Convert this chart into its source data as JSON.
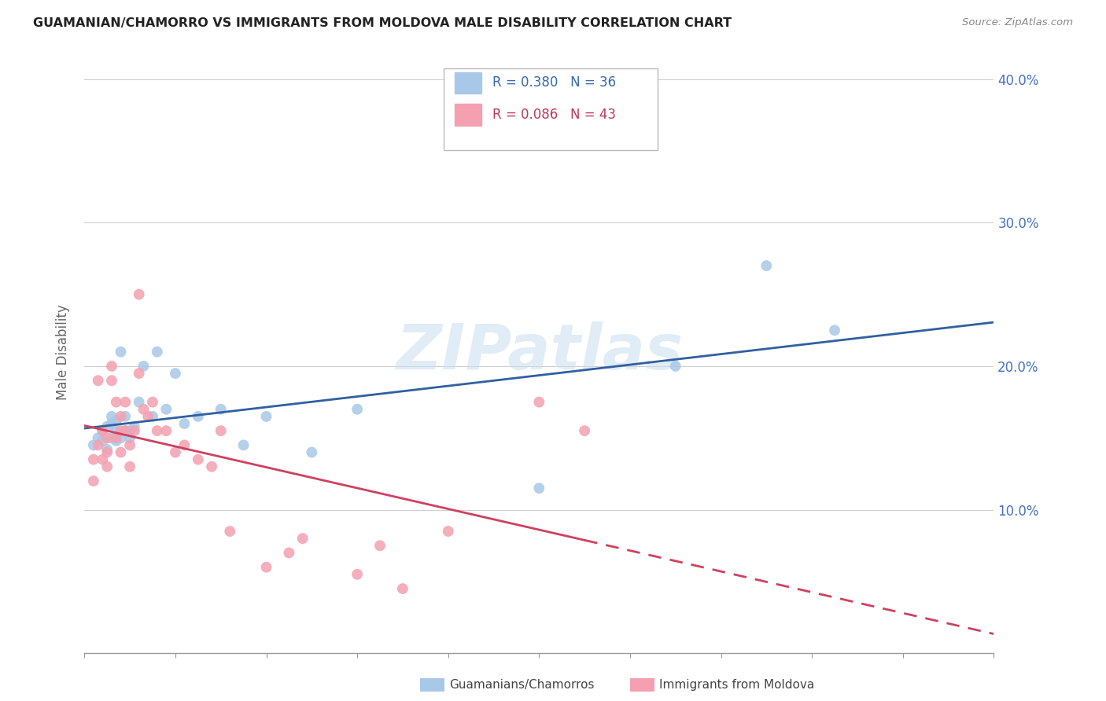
{
  "title": "GUAMANIAN/CHAMORRO VS IMMIGRANTS FROM MOLDOVA MALE DISABILITY CORRELATION CHART",
  "source": "Source: ZipAtlas.com",
  "ylabel": "Male Disability",
  "xlim": [
    0.0,
    0.2
  ],
  "ylim": [
    0.0,
    0.42
  ],
  "legend_blue_R": "R = 0.380",
  "legend_blue_N": "N = 36",
  "legend_pink_R": "R = 0.086",
  "legend_pink_N": "N = 43",
  "legend_label_blue": "Guamanians/Chamorros",
  "legend_label_pink": "Immigrants from Moldova",
  "blue_fill": "#a8c8e8",
  "pink_fill": "#f4a0b0",
  "blue_line_color": "#3060a0",
  "pink_line_color": "#d04060",
  "background_color": "#ffffff",
  "watermark": "ZIPatlas",
  "blue_x": [
    0.002,
    0.003,
    0.004,
    0.004,
    0.005,
    0.005,
    0.006,
    0.006,
    0.006,
    0.007,
    0.007,
    0.007,
    0.008,
    0.008,
    0.009,
    0.009,
    0.01,
    0.01,
    0.011,
    0.012,
    0.013,
    0.015,
    0.016,
    0.018,
    0.02,
    0.022,
    0.025,
    0.03,
    0.035,
    0.04,
    0.05,
    0.06,
    0.1,
    0.13,
    0.15,
    0.165
  ],
  "blue_y": [
    0.145,
    0.15,
    0.148,
    0.155,
    0.142,
    0.158,
    0.15,
    0.16,
    0.165,
    0.148,
    0.155,
    0.162,
    0.15,
    0.21,
    0.155,
    0.165,
    0.15,
    0.155,
    0.158,
    0.175,
    0.2,
    0.165,
    0.21,
    0.17,
    0.195,
    0.16,
    0.165,
    0.17,
    0.145,
    0.165,
    0.14,
    0.17,
    0.115,
    0.2,
    0.27,
    0.225
  ],
  "pink_x": [
    0.002,
    0.002,
    0.003,
    0.003,
    0.004,
    0.004,
    0.005,
    0.005,
    0.005,
    0.006,
    0.006,
    0.007,
    0.007,
    0.008,
    0.008,
    0.008,
    0.009,
    0.009,
    0.01,
    0.01,
    0.011,
    0.012,
    0.012,
    0.013,
    0.014,
    0.015,
    0.016,
    0.018,
    0.02,
    0.022,
    0.025,
    0.028,
    0.03,
    0.032,
    0.04,
    0.045,
    0.048,
    0.06,
    0.065,
    0.07,
    0.08,
    0.1,
    0.11
  ],
  "pink_y": [
    0.135,
    0.12,
    0.19,
    0.145,
    0.135,
    0.155,
    0.14,
    0.15,
    0.13,
    0.19,
    0.2,
    0.15,
    0.175,
    0.155,
    0.165,
    0.14,
    0.155,
    0.175,
    0.145,
    0.13,
    0.155,
    0.25,
    0.195,
    0.17,
    0.165,
    0.175,
    0.155,
    0.155,
    0.14,
    0.145,
    0.135,
    0.13,
    0.155,
    0.085,
    0.06,
    0.07,
    0.08,
    0.055,
    0.075,
    0.045,
    0.085,
    0.175,
    0.155
  ]
}
